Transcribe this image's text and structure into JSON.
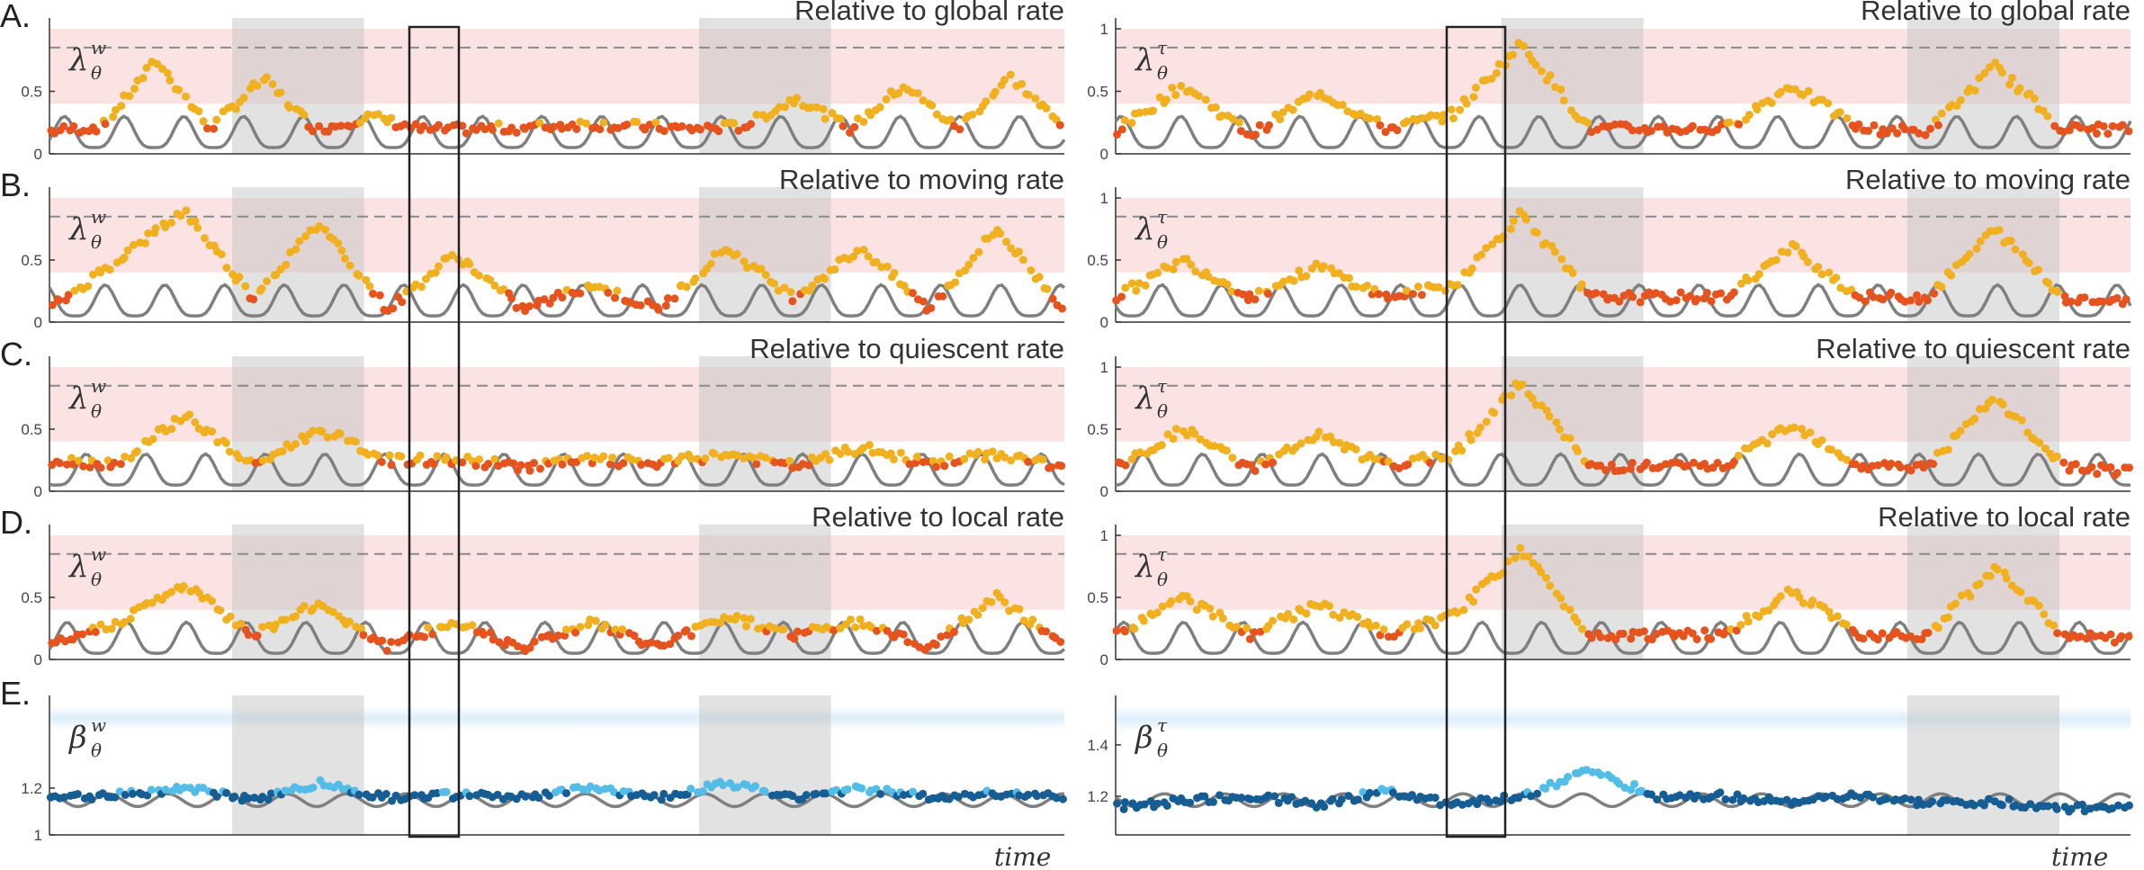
{
  "figure": {
    "x_axis_label": "time"
  },
  "colors": {
    "warm_lo": "#e5531e",
    "warm_hi": "#f1b01f",
    "cool_lo": "#155d93",
    "cool_hi": "#53bde8",
    "trace": "#7f7f7f",
    "red_band": "#fbe3e3",
    "blue_band": "#ddeefa",
    "grey_span": "#bfbfbf"
  },
  "chart_data": [
    {
      "type": "scatter",
      "row": "A.",
      "title": "Relative to global rate",
      "symbol": "λ",
      "sup": "w",
      "sub": "θ",
      "yticks": [
        "0",
        "0.5"
      ],
      "ylim": [
        0,
        1
      ],
      "threshold": 0.85,
      "high_band": [
        0.4,
        1
      ],
      "shaded_time_spans": [
        [
          0.18,
          0.31
        ],
        [
          0.64,
          0.77
        ]
      ],
      "highlight_box": [
        0.42,
        0.47
      ],
      "series": [
        {
          "values": [
            0.18,
            0.22,
            0.75,
            0.2,
            0.6,
            0.19,
            0.3,
            0.19,
            0.2,
            0.21,
            0.24,
            0.22,
            0.2,
            0.22,
            0.45,
            0.2,
            0.55,
            0.2,
            0.62,
            0.2
          ]
        }
      ]
    },
    {
      "type": "scatter",
      "row": "",
      "title": "Relative to global rate",
      "symbol": "λ",
      "sup": "τ",
      "sub": "θ",
      "yticks": [
        "0",
        "0.5",
        "1"
      ],
      "ylim": [
        0,
        1
      ],
      "threshold": 0.85,
      "high_band": [
        0.4,
        1
      ],
      "shaded_time_spans": [
        [
          0.38,
          0.52
        ],
        [
          0.78,
          0.93
        ]
      ],
      "highlight_box": [
        0.4,
        0.47
      ],
      "series": [
        {
          "values": [
            0.18,
            0.55,
            0.15,
            0.5,
            0.2,
            0.32,
            0.88,
            0.2,
            0.2,
            0.2,
            0.55,
            0.2,
            0.18,
            0.7,
            0.2,
            0.2
          ]
        }
      ]
    },
    {
      "type": "scatter",
      "row": "B.",
      "title": "Relative to moving rate",
      "symbol": "λ",
      "sup": "w",
      "sub": "θ",
      "yticks": [
        "0",
        "0.5"
      ],
      "ylim": [
        0,
        1
      ],
      "threshold": 0.85,
      "high_band": [
        0.4,
        1
      ],
      "shaded_time_spans": [
        [
          0.18,
          0.31
        ],
        [
          0.64,
          0.77
        ]
      ],
      "highlight_box": [
        0.42,
        0.47
      ],
      "series": [
        {
          "values": [
            0.1,
            0.5,
            0.9,
            0.2,
            0.8,
            0.1,
            0.55,
            0.1,
            0.3,
            0.1,
            0.6,
            0.2,
            0.6,
            0.1,
            0.75,
            0.1
          ]
        }
      ]
    },
    {
      "type": "scatter",
      "row": "",
      "title": "Relative to moving rate",
      "symbol": "λ",
      "sup": "τ",
      "sub": "θ",
      "yticks": [
        "0",
        "0.5",
        "1"
      ],
      "ylim": [
        0,
        1
      ],
      "threshold": 0.85,
      "high_band": [
        0.4,
        1
      ],
      "shaded_time_spans": [
        [
          0.38,
          0.52
        ],
        [
          0.78,
          0.93
        ]
      ],
      "highlight_box": [
        0.4,
        0.47
      ],
      "series": [
        {
          "values": [
            0.2,
            0.5,
            0.2,
            0.45,
            0.2,
            0.3,
            0.88,
            0.2,
            0.2,
            0.2,
            0.6,
            0.2,
            0.2,
            0.75,
            0.2,
            0.15
          ]
        }
      ]
    },
    {
      "type": "scatter",
      "row": "C.",
      "title": "Relative to quiescent rate",
      "symbol": "λ",
      "sup": "w",
      "sub": "θ",
      "yticks": [
        "0",
        "0.5"
      ],
      "ylim": [
        0,
        1
      ],
      "threshold": 0.85,
      "high_band": [
        0.4,
        1
      ],
      "shaded_time_spans": [
        [
          0.18,
          0.31
        ],
        [
          0.64,
          0.77
        ]
      ],
      "highlight_box": [
        0.42,
        0.47
      ],
      "series": [
        {
          "values": [
            0.25,
            0.22,
            0.62,
            0.2,
            0.5,
            0.25,
            0.25,
            0.2,
            0.25,
            0.22,
            0.3,
            0.2,
            0.35,
            0.22,
            0.3,
            0.2
          ]
        }
      ]
    },
    {
      "type": "scatter",
      "row": "",
      "title": "Relative to quiescent rate",
      "symbol": "λ",
      "sup": "τ",
      "sub": "θ",
      "yticks": [
        "0",
        "0.5",
        "1"
      ],
      "ylim": [
        0,
        1
      ],
      "threshold": 0.85,
      "high_band": [
        0.4,
        1
      ],
      "shaded_time_spans": [
        [
          0.38,
          0.52
        ],
        [
          0.78,
          0.93
        ]
      ],
      "highlight_box": [
        0.4,
        0.47
      ],
      "series": [
        {
          "values": [
            0.18,
            0.5,
            0.18,
            0.45,
            0.2,
            0.3,
            0.88,
            0.2,
            0.2,
            0.2,
            0.55,
            0.2,
            0.2,
            0.75,
            0.2,
            0.15
          ]
        }
      ]
    },
    {
      "type": "scatter",
      "row": "D.",
      "title": "Relative to local rate",
      "symbol": "λ",
      "sup": "w",
      "sub": "θ",
      "yticks": [
        "0",
        "0.5"
      ],
      "ylim": [
        0,
        1
      ],
      "threshold": 0.85,
      "high_band": [
        0.4,
        1
      ],
      "shaded_time_spans": [
        [
          0.18,
          0.31
        ],
        [
          0.64,
          0.77
        ]
      ],
      "highlight_box": [
        0.42,
        0.47
      ],
      "series": [
        {
          "values": [
            0.1,
            0.3,
            0.6,
            0.2,
            0.45,
            0.1,
            0.3,
            0.1,
            0.3,
            0.1,
            0.35,
            0.2,
            0.3,
            0.1,
            0.5,
            0.1
          ]
        }
      ]
    },
    {
      "type": "scatter",
      "row": "",
      "title": "Relative to local rate",
      "symbol": "λ",
      "sup": "τ",
      "sub": "θ",
      "yticks": [
        "0",
        "0.5",
        "1"
      ],
      "ylim": [
        0,
        1
      ],
      "threshold": 0.85,
      "high_band": [
        0.4,
        1
      ],
      "shaded_time_spans": [
        [
          0.38,
          0.52
        ],
        [
          0.78,
          0.93
        ]
      ],
      "highlight_box": [
        0.4,
        0.47
      ],
      "series": [
        {
          "values": [
            0.2,
            0.5,
            0.2,
            0.45,
            0.2,
            0.35,
            0.88,
            0.2,
            0.2,
            0.2,
            0.55,
            0.2,
            0.2,
            0.75,
            0.2,
            0.15
          ]
        }
      ]
    },
    {
      "type": "scatter",
      "row": "E.",
      "title": "",
      "symbol": "β",
      "sup": "w",
      "sub": "θ",
      "yticks": [
        "1",
        "1.2"
      ],
      "ylim": [
        1,
        1.55
      ],
      "high_band": [
        1.45,
        1.55
      ],
      "shaded_time_spans": [
        [
          0.18,
          0.31
        ],
        [
          0.64,
          0.77
        ]
      ],
      "highlight_box": [
        0.42,
        0.47
      ],
      "series": [
        {
          "values": [
            1.16,
            1.17,
            1.2,
            1.15,
            1.22,
            1.16,
            1.17,
            1.16,
            1.2,
            1.16,
            1.22,
            1.16,
            1.2,
            1.16,
            1.18,
            1.16
          ]
        }
      ]
    },
    {
      "type": "scatter",
      "row": "",
      "title": "",
      "symbol": "β",
      "sup": "τ",
      "sub": "θ",
      "yticks": [
        "1.2",
        "1.4"
      ],
      "ylim": [
        1.05,
        1.55
      ],
      "high_band": [
        1.45,
        1.55
      ],
      "shaded_time_spans": [
        [
          0.78,
          0.93
        ]
      ],
      "highlight_box": [
        0.4,
        0.47
      ],
      "series": [
        {
          "values": [
            1.16,
            1.18,
            1.2,
            1.17,
            1.22,
            1.17,
            1.2,
            1.3,
            1.2,
            1.2,
            1.18,
            1.2,
            1.17,
            1.18,
            1.15,
            1.17
          ]
        }
      ]
    }
  ]
}
